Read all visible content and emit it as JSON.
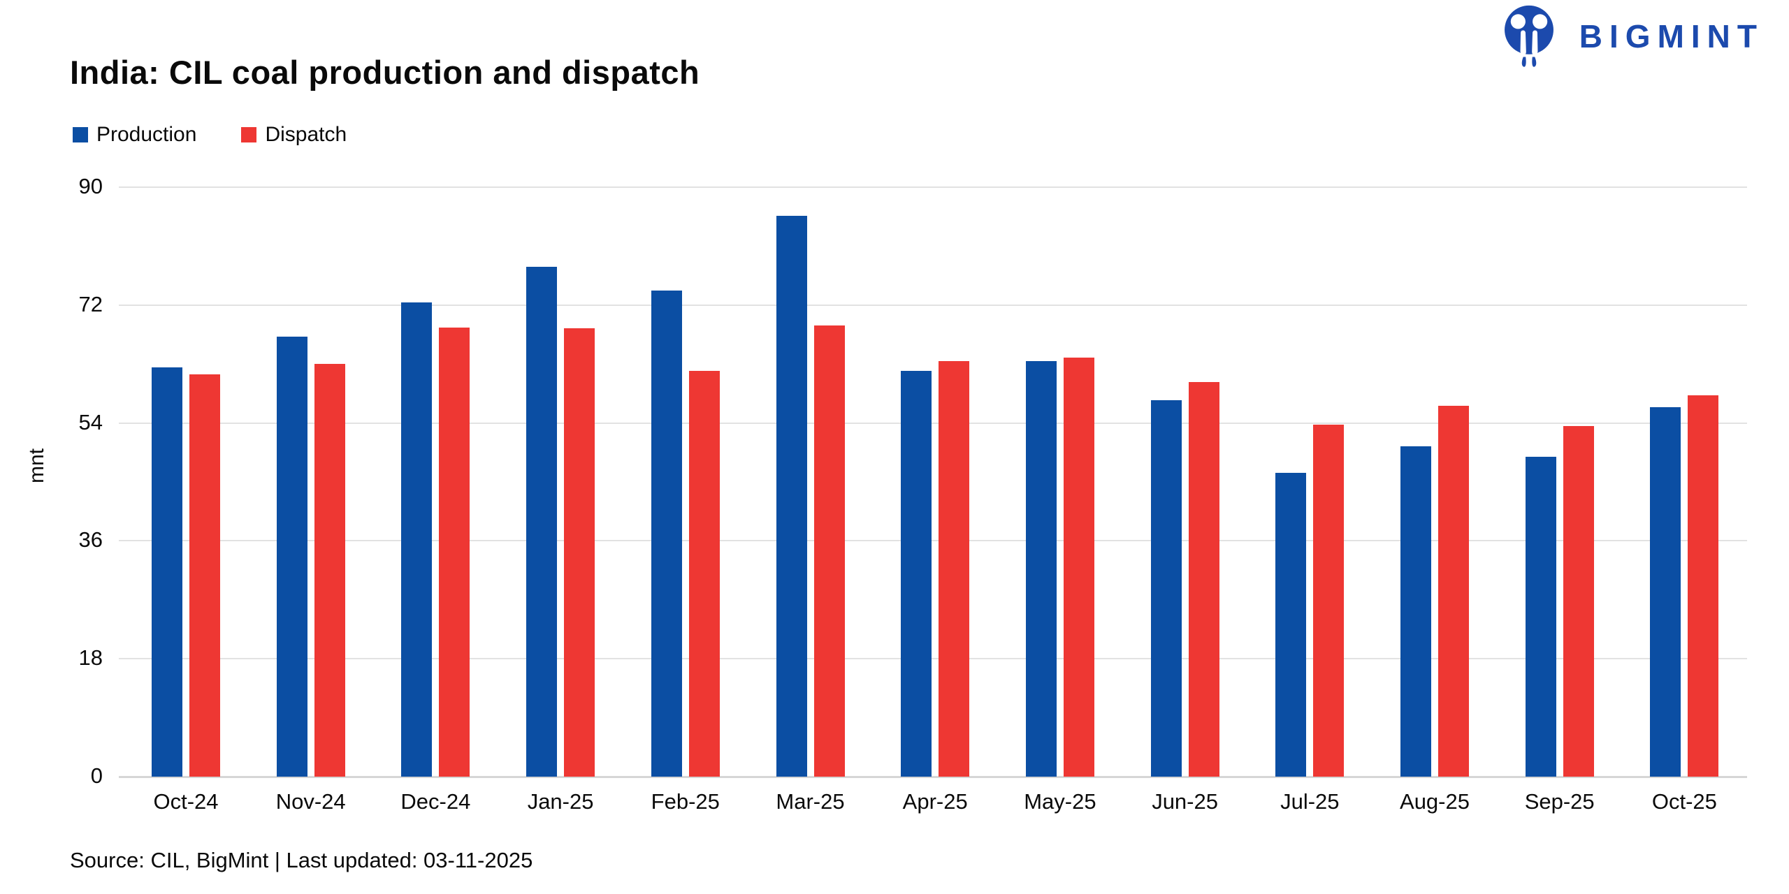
{
  "brand": {
    "name": "BIGMINT",
    "color": "#1c4aad"
  },
  "footer": {
    "source_line": "Source: CIL, BigMint | Last updated: 03-11-2025"
  },
  "chart_data": {
    "type": "bar",
    "title": "India: CIL coal production and dispatch",
    "categories": [
      "Oct-24",
      "Nov-24",
      "Dec-24",
      "Jan-25",
      "Feb-25",
      "Mar-25",
      "Apr-25",
      "May-25",
      "Jun-25",
      "Jul-25",
      "Aug-25",
      "Sep-25",
      "Oct-25"
    ],
    "series": [
      {
        "name": "Production",
        "color": "#0b4ea3",
        "values": [
          62.5,
          67.2,
          72.4,
          77.8,
          74.2,
          85.6,
          62.0,
          63.4,
          57.5,
          46.4,
          50.4,
          48.8,
          56.4
        ]
      },
      {
        "name": "Dispatch",
        "color": "#ee3733",
        "values": [
          61.4,
          63.0,
          68.6,
          68.5,
          62.0,
          68.9,
          63.4,
          64.0,
          60.3,
          53.7,
          56.6,
          53.5,
          58.2
        ]
      }
    ],
    "xlabel": "",
    "ylabel": "mnt",
    "ylim": [
      0,
      90
    ],
    "yticks": [
      0,
      18,
      36,
      54,
      72,
      90
    ],
    "grid": "horizontal-only",
    "legend_position": "top-left",
    "gridline_color": "#e2e2e2"
  }
}
